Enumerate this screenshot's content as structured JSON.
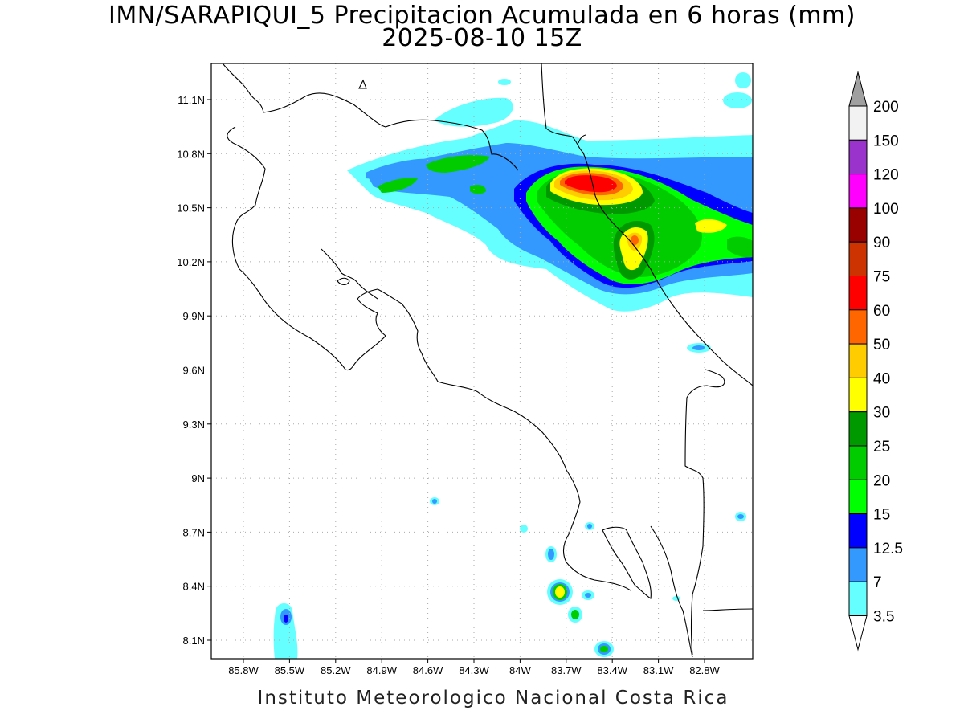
{
  "title": {
    "line1": "IMN/SARAPIQUI_5 Precipitacion Acumulada en 6 horas (mm)",
    "line2": "2025-08-10 15Z"
  },
  "footer": "Instituto Meteorologico Nacional Costa Rica",
  "axes": {
    "lon_ticks": [
      "85.8W",
      "85.5W",
      "85.2W",
      "84.9W",
      "84.6W",
      "84.3W",
      "84W",
      "83.7W",
      "83.4W",
      "83.1W",
      "82.8W"
    ],
    "lat_ticks": [
      "11.1N",
      "10.8N",
      "10.5N",
      "10.2N",
      "9.9N",
      "9.6N",
      "9.3N",
      "9N",
      "8.7N",
      "8.4N",
      "8.1N"
    ],
    "grid": "dotted"
  },
  "colorbar": {
    "levels": [
      "200",
      "150",
      "120",
      "100",
      "90",
      "75",
      "60",
      "50",
      "40",
      "30",
      "25",
      "20",
      "15",
      "12.5",
      "7",
      "3.5"
    ],
    "colors": [
      "#f2f2f2",
      "#9933cc",
      "#ff00ff",
      "#990000",
      "#cc3300",
      "#ff0000",
      "#ff6600",
      "#ffcc00",
      "#ffff00",
      "#009900",
      "#00cc00",
      "#00ff00",
      "#0000ff",
      "#3399ff",
      "#66ffff"
    ],
    "upper_triangle_color": "#a0a0a0",
    "lower_triangle_color": "#ffffff"
  },
  "colors": {
    "c3_5": "#66ffff",
    "c7": "#3399ff",
    "c12_5": "#0000ff",
    "c15": "#00ff00",
    "c20": "#00cc00",
    "c25": "#009900",
    "c30": "#ffff00",
    "c40": "#ffcc00",
    "c50": "#ff6600",
    "c60": "#ff0000"
  }
}
